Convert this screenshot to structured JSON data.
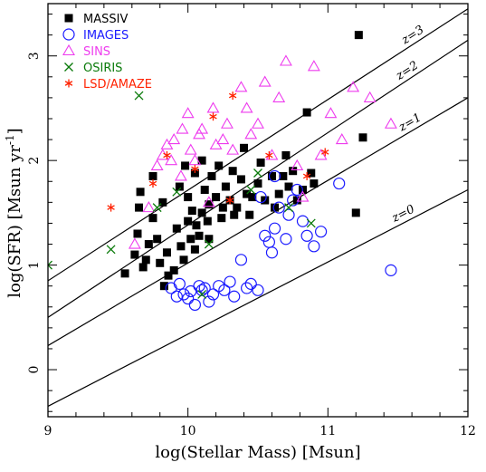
{
  "chart_data": {
    "type": "scatter",
    "xlabel": "log(Stellar Mass) [Msun]",
    "ylabel": "log(SFR) [Msun yr",
    "ylabel_sup": "-1",
    "ylabel_end": "]",
    "xlim": [
      9,
      12
    ],
    "ylim": [
      -0.45,
      3.5
    ],
    "xticks": [
      "9",
      "10",
      "11",
      "12"
    ],
    "yticks": [
      "0",
      "1",
      "2",
      "3"
    ],
    "legend_position": "top-left",
    "lines": [
      {
        "name": "z=3",
        "x": [
          9,
          12
        ],
        "y": [
          0.85,
          3.45
        ]
      },
      {
        "name": "z=2",
        "x": [
          9,
          12
        ],
        "y": [
          0.5,
          3.15
        ]
      },
      {
        "name": "z=1",
        "x": [
          9,
          12
        ],
        "y": [
          0.23,
          2.6
        ]
      },
      {
        "name": "z=0",
        "x": [
          9,
          12
        ],
        "y": [
          -0.35,
          1.72
        ]
      }
    ],
    "series": [
      {
        "name": "MASSIV",
        "marker": "filled-square",
        "color": "#000000",
        "x": [
          9.55,
          9.62,
          9.64,
          9.65,
          9.66,
          9.68,
          9.7,
          9.72,
          9.75,
          9.75,
          9.78,
          9.8,
          9.82,
          9.83,
          9.85,
          9.86,
          9.9,
          9.92,
          9.94,
          9.95,
          9.97,
          9.98,
          10,
          10,
          10.02,
          10.03,
          10.05,
          10.05,
          10.06,
          10.08,
          10.1,
          10.1,
          10.12,
          10.14,
          10.15,
          10.15,
          10.17,
          10.2,
          10.22,
          10.24,
          10.25,
          10.27,
          10.3,
          10.32,
          10.33,
          10.35,
          10.38,
          10.4,
          10.42,
          10.44,
          10.46,
          10.5,
          10.52,
          10.55,
          10.6,
          10.62,
          10.65,
          10.68,
          10.7,
          10.72,
          10.75,
          10.78,
          10.82,
          10.85,
          10.88,
          10.9,
          11.22,
          11.25,
          11.2
        ],
        "y": [
          0.92,
          1.1,
          1.3,
          1.55,
          1.7,
          0.98,
          1.05,
          1.2,
          1.45,
          1.85,
          1.25,
          1.02,
          1.6,
          0.8,
          1.12,
          0.9,
          0.95,
          1.35,
          1.75,
          1.18,
          1.05,
          1.95,
          1.42,
          1.65,
          1.25,
          1.52,
          1.15,
          1.88,
          1.38,
          1.28,
          1.5,
          2.0,
          1.72,
          1.42,
          1.58,
          1.25,
          1.85,
          1.65,
          1.95,
          1.45,
          1.55,
          1.75,
          1.62,
          1.9,
          1.48,
          1.55,
          1.82,
          2.12,
          1.68,
          1.48,
          1.65,
          1.78,
          1.98,
          1.62,
          1.85,
          1.55,
          1.68,
          1.85,
          2.05,
          1.75,
          1.9,
          1.62,
          1.72,
          2.46,
          1.88,
          1.78,
          3.2,
          2.22,
          1.5
        ]
      },
      {
        "name": "IMAGES",
        "marker": "open-circle",
        "color": "#1a1aff",
        "x": [
          9.88,
          9.92,
          9.94,
          9.97,
          10,
          10.02,
          10.05,
          10.08,
          10.1,
          10.12,
          10.15,
          10.18,
          10.22,
          10.26,
          10.3,
          10.33,
          10.38,
          10.42,
          10.45,
          10.5,
          10.55,
          10.58,
          10.6,
          10.62,
          10.65,
          10.7,
          10.72,
          10.75,
          10.78,
          10.82,
          10.85,
          10.9,
          10.95,
          11.08,
          11.45,
          10.52,
          10.62
        ],
        "y": [
          0.78,
          0.7,
          0.82,
          0.72,
          0.68,
          0.75,
          0.62,
          0.8,
          0.76,
          0.78,
          0.65,
          0.72,
          0.8,
          0.76,
          0.84,
          0.7,
          1.05,
          0.78,
          0.82,
          0.76,
          1.28,
          1.22,
          1.12,
          1.35,
          1.55,
          1.25,
          1.48,
          1.62,
          1.72,
          1.42,
          1.28,
          1.18,
          1.32,
          1.78,
          0.95,
          1.65,
          1.85
        ]
      },
      {
        "name": "SINS",
        "marker": "open-triangle",
        "color": "#ee3bee",
        "x": [
          9.62,
          9.72,
          9.78,
          9.82,
          9.85,
          9.88,
          9.9,
          9.95,
          9.96,
          10,
          10.02,
          10.05,
          10.08,
          10.1,
          10.15,
          10.18,
          10.2,
          10.25,
          10.28,
          10.32,
          10.38,
          10.42,
          10.45,
          10.5,
          10.55,
          10.6,
          10.65,
          10.7,
          10.78,
          10.82,
          10.9,
          10.95,
          11.02,
          11.1,
          11.18,
          11.3,
          11.45
        ],
        "y": [
          1.2,
          1.55,
          1.95,
          2.05,
          2.15,
          2.0,
          2.2,
          1.85,
          2.3,
          2.45,
          2.1,
          2.0,
          2.25,
          2.3,
          1.6,
          2.5,
          2.15,
          2.2,
          2.35,
          2.1,
          2.7,
          2.5,
          2.25,
          2.35,
          2.75,
          2.05,
          2.6,
          2.95,
          1.95,
          1.65,
          2.9,
          2.05,
          2.45,
          2.2,
          2.7,
          2.6,
          2.35
        ]
      },
      {
        "name": "OSIRIS",
        "marker": "cross",
        "color": "#0a7a0a",
        "x": [
          9,
          9.45,
          9.65,
          9.78,
          9.92,
          10.15,
          10.45,
          10.5,
          10.72,
          10.88,
          10.1
        ],
        "y": [
          1.0,
          1.15,
          2.62,
          1.55,
          1.7,
          1.2,
          1.72,
          1.88,
          1.55,
          1.4,
          0.72
        ]
      },
      {
        "name": "LSD/AMAZE",
        "marker": "asterisk",
        "color": "#ff2200",
        "x": [
          9.45,
          9.75,
          9.85,
          10.05,
          10.18,
          10.3,
          10.32,
          10.58,
          10.85,
          10.98
        ],
        "y": [
          1.55,
          1.78,
          2.05,
          1.92,
          2.42,
          1.62,
          2.62,
          2.05,
          1.85,
          2.08
        ]
      }
    ],
    "legend": [
      {
        "label": "MASSIV",
        "color": "#000000"
      },
      {
        "label": "IMAGES",
        "color": "#1a1aff"
      },
      {
        "label": "SINS",
        "color": "#ee3bee"
      },
      {
        "label": "OSIRIS",
        "color": "#0a7a0a"
      },
      {
        "label": "LSD/AMAZE",
        "color": "#ff2200"
      }
    ]
  }
}
